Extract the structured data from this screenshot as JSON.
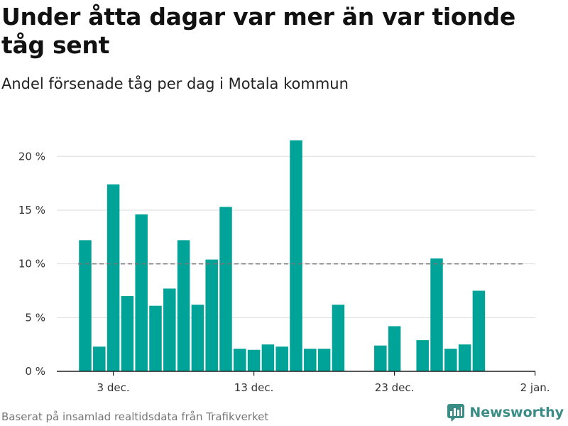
{
  "header": {
    "title": "Under åtta dagar var mer än var tionde tåg sent",
    "subtitle": "Andel försenade tåg per dag i Motala kommun"
  },
  "footer": {
    "source": "Baserat på insamlad realtidsdata från Trafikverket",
    "brand": "Newsworthy"
  },
  "colors": {
    "bar": "#00a398",
    "reference_line": "#777777",
    "grid": "#dddddd",
    "brand": "#3a8c87"
  },
  "chart_data": {
    "type": "bar",
    "title": "Under åtta dagar var mer än var tionde tåg sent",
    "subtitle": "Andel försenade tåg per dag i Motala kommun",
    "xlabel": "",
    "ylabel": "",
    "x_start": "2019-12-01",
    "x_end": "2020-01-02",
    "ylim": [
      0,
      22
    ],
    "yticks": [
      0,
      5,
      10,
      15,
      20
    ],
    "ytick_labels": [
      "0 %",
      "5 %",
      "10 %",
      "15 %",
      "20 %"
    ],
    "xticks": [
      {
        "day_offset": 2,
        "label": "3 dec."
      },
      {
        "day_offset": 12,
        "label": "13 dec."
      },
      {
        "day_offset": 22,
        "label": "23 dec."
      },
      {
        "day_offset": 32,
        "label": "2 jan."
      }
    ],
    "grid": true,
    "reference_line": {
      "value": 10,
      "from_day_offset": 0,
      "to_day_offset": 31,
      "style": "dashed"
    },
    "categories": [
      "1 dec.",
      "2 dec.",
      "3 dec.",
      "4 dec.",
      "5 dec.",
      "6 dec.",
      "7 dec.",
      "8 dec.",
      "9 dec.",
      "10 dec.",
      "11 dec.",
      "12 dec.",
      "13 dec.",
      "14 dec.",
      "15 dec.",
      "16 dec.",
      "17 dec.",
      "18 dec.",
      "19 dec.",
      "20 dec.",
      "21 dec.",
      "22 dec.",
      "23 dec.",
      "24 dec.",
      "25 dec.",
      "26 dec.",
      "27 dec.",
      "28 dec.",
      "29 dec."
    ],
    "values": [
      12.2,
      2.3,
      17.4,
      7.0,
      14.6,
      6.1,
      7.7,
      12.2,
      6.2,
      10.4,
      15.3,
      2.1,
      2.0,
      2.5,
      2.3,
      21.5,
      2.1,
      2.1,
      6.2,
      null,
      null,
      2.4,
      4.2,
      null,
      2.9,
      10.5,
      2.1,
      2.5,
      7.5
    ]
  }
}
